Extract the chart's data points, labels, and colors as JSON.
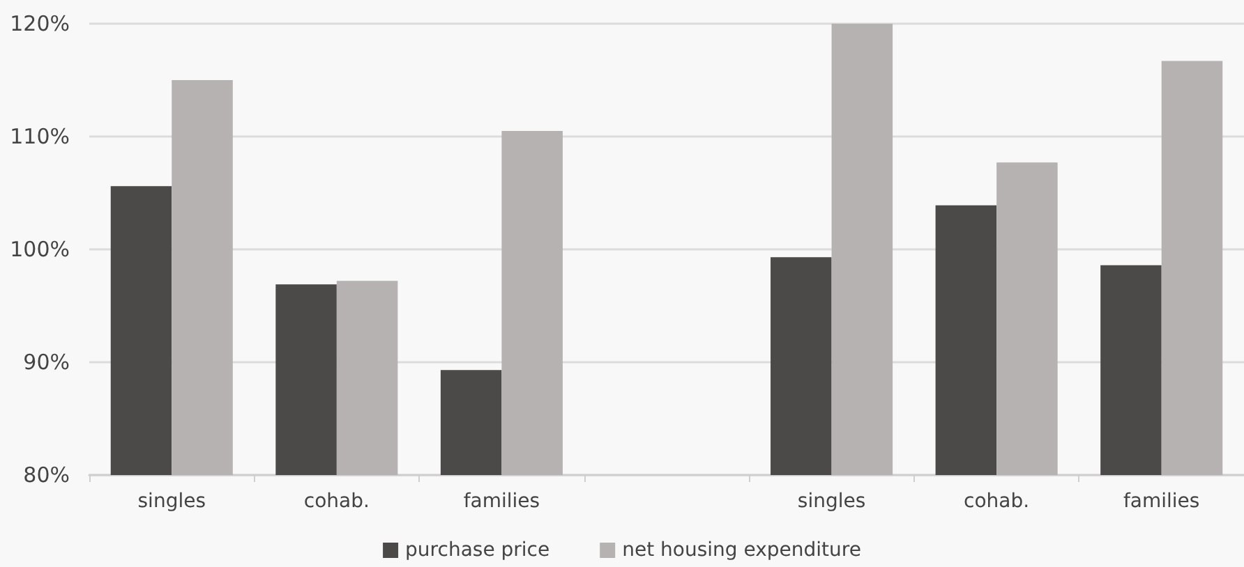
{
  "chart_data": {
    "type": "bar",
    "categories": [
      "singles",
      "cohab.",
      "families",
      null,
      "singles",
      "cohab.",
      "families"
    ],
    "series": [
      {
        "name": "purchase price",
        "color": "#4b4a48",
        "values": [
          105.6,
          96.9,
          89.3,
          null,
          99.3,
          103.9,
          98.6
        ]
      },
      {
        "name": "net housing expenditure",
        "color": "#b5b2b1",
        "values": [
          115.0,
          97.2,
          110.5,
          null,
          120.0,
          107.7,
          116.7
        ]
      }
    ],
    "ylim": [
      80,
      120
    ],
    "yticks": [
      {
        "value": 80,
        "label": "80%"
      },
      {
        "value": 90,
        "label": "90%"
      },
      {
        "value": 100,
        "label": "100%"
      },
      {
        "value": 110,
        "label": "110%"
      },
      {
        "value": 120,
        "label": "120%"
      }
    ],
    "grid": "y",
    "legend": "bottom"
  }
}
